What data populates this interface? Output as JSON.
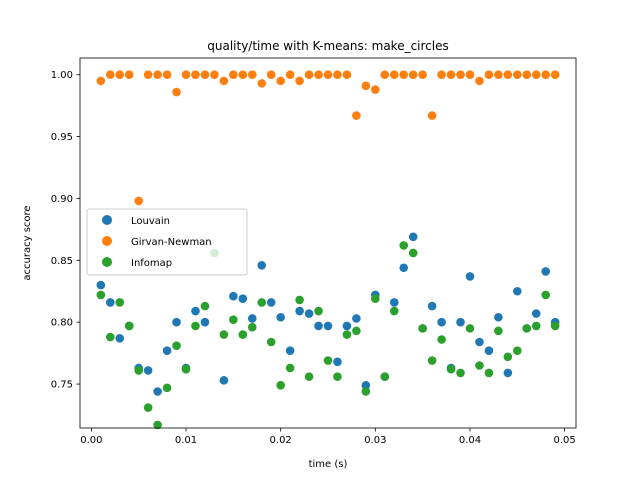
{
  "chart_data": {
    "type": "scatter",
    "title": "quality/time with K-means: make_circles",
    "xlabel": "time (s)",
    "ylabel": "accuracy score",
    "xlim": [
      -0.0012,
      0.0512
    ],
    "ylim": [
      0.7145,
      1.0135
    ],
    "xticks": [
      0.0,
      0.01,
      0.02,
      0.03,
      0.04,
      0.05
    ],
    "xtick_labels": [
      "0.00",
      "0.01",
      "0.02",
      "0.03",
      "0.04",
      "0.05"
    ],
    "yticks": [
      0.75,
      0.8,
      0.85,
      0.9,
      0.95,
      1.0
    ],
    "ytick_labels": [
      "0.75",
      "0.80",
      "0.85",
      "0.90",
      "0.95",
      "1.00"
    ],
    "grid": false,
    "legend_position": "center-left",
    "series": [
      {
        "name": "Louvain",
        "color": "#1f77b4",
        "points": [
          [
            0.001,
            0.83
          ],
          [
            0.002,
            0.816
          ],
          [
            0.003,
            0.787
          ],
          [
            0.004,
            0.797
          ],
          [
            0.005,
            0.763
          ],
          [
            0.006,
            0.761
          ],
          [
            0.007,
            0.744
          ],
          [
            0.008,
            0.777
          ],
          [
            0.009,
            0.8
          ],
          [
            0.01,
            0.763
          ],
          [
            0.011,
            0.809
          ],
          [
            0.012,
            0.8
          ],
          [
            0.013,
            0.856
          ],
          [
            0.014,
            0.753
          ],
          [
            0.015,
            0.821
          ],
          [
            0.016,
            0.819
          ],
          [
            0.017,
            0.803
          ],
          [
            0.018,
            0.846
          ],
          [
            0.019,
            0.816
          ],
          [
            0.02,
            0.804
          ],
          [
            0.021,
            0.777
          ],
          [
            0.022,
            0.809
          ],
          [
            0.023,
            0.807
          ],
          [
            0.024,
            0.797
          ],
          [
            0.025,
            0.797
          ],
          [
            0.026,
            0.768
          ],
          [
            0.027,
            0.797
          ],
          [
            0.028,
            0.803
          ],
          [
            0.029,
            0.749
          ],
          [
            0.03,
            0.822
          ],
          [
            0.031,
            0.756
          ],
          [
            0.032,
            0.816
          ],
          [
            0.033,
            0.844
          ],
          [
            0.034,
            0.869
          ],
          [
            0.035,
            0.795
          ],
          [
            0.036,
            0.813
          ],
          [
            0.037,
            0.8
          ],
          [
            0.038,
            0.763
          ],
          [
            0.039,
            0.8
          ],
          [
            0.04,
            0.837
          ],
          [
            0.041,
            0.784
          ],
          [
            0.042,
            0.777
          ],
          [
            0.043,
            0.804
          ],
          [
            0.044,
            0.759
          ],
          [
            0.045,
            0.825
          ],
          [
            0.046,
            0.795
          ],
          [
            0.047,
            0.807
          ],
          [
            0.048,
            0.841
          ],
          [
            0.049,
            0.8
          ]
        ]
      },
      {
        "name": "Girvan-Newman",
        "color": "#ff7f0e",
        "points": [
          [
            0.001,
            0.995
          ],
          [
            0.002,
            1.0
          ],
          [
            0.003,
            1.0
          ],
          [
            0.004,
            1.0
          ],
          [
            0.005,
            0.898
          ],
          [
            0.006,
            1.0
          ],
          [
            0.007,
            1.0
          ],
          [
            0.008,
            1.0
          ],
          [
            0.009,
            0.986
          ],
          [
            0.01,
            1.0
          ],
          [
            0.011,
            1.0
          ],
          [
            0.012,
            1.0
          ],
          [
            0.013,
            1.0
          ],
          [
            0.014,
            0.995
          ],
          [
            0.015,
            1.0
          ],
          [
            0.016,
            1.0
          ],
          [
            0.017,
            1.0
          ],
          [
            0.018,
            0.993
          ],
          [
            0.019,
            1.0
          ],
          [
            0.02,
            0.995
          ],
          [
            0.021,
            1.0
          ],
          [
            0.022,
            0.995
          ],
          [
            0.023,
            1.0
          ],
          [
            0.024,
            1.0
          ],
          [
            0.025,
            1.0
          ],
          [
            0.026,
            1.0
          ],
          [
            0.027,
            1.0
          ],
          [
            0.028,
            0.967
          ],
          [
            0.029,
            0.991
          ],
          [
            0.03,
            0.988
          ],
          [
            0.031,
            1.0
          ],
          [
            0.032,
            1.0
          ],
          [
            0.033,
            1.0
          ],
          [
            0.034,
            1.0
          ],
          [
            0.035,
            1.0
          ],
          [
            0.036,
            0.967
          ],
          [
            0.037,
            1.0
          ],
          [
            0.038,
            1.0
          ],
          [
            0.039,
            1.0
          ],
          [
            0.04,
            1.0
          ],
          [
            0.041,
            0.995
          ],
          [
            0.042,
            1.0
          ],
          [
            0.043,
            1.0
          ],
          [
            0.044,
            1.0
          ],
          [
            0.045,
            1.0
          ],
          [
            0.046,
            1.0
          ],
          [
            0.047,
            1.0
          ],
          [
            0.048,
            1.0
          ],
          [
            0.049,
            1.0
          ]
        ]
      },
      {
        "name": "Infomap",
        "color": "#2ca02c",
        "points": [
          [
            0.001,
            0.822
          ],
          [
            0.002,
            0.788
          ],
          [
            0.003,
            0.816
          ],
          [
            0.004,
            0.797
          ],
          [
            0.005,
            0.761
          ],
          [
            0.006,
            0.731
          ],
          [
            0.007,
            0.717
          ],
          [
            0.008,
            0.747
          ],
          [
            0.009,
            0.781
          ],
          [
            0.01,
            0.762
          ],
          [
            0.011,
            0.797
          ],
          [
            0.012,
            0.813
          ],
          [
            0.013,
            0.856
          ],
          [
            0.014,
            0.79
          ],
          [
            0.015,
            0.802
          ],
          [
            0.016,
            0.79
          ],
          [
            0.017,
            0.796
          ],
          [
            0.018,
            0.816
          ],
          [
            0.019,
            0.784
          ],
          [
            0.02,
            0.749
          ],
          [
            0.021,
            0.763
          ],
          [
            0.022,
            0.818
          ],
          [
            0.023,
            0.756
          ],
          [
            0.024,
            0.809
          ],
          [
            0.025,
            0.769
          ],
          [
            0.026,
            0.756
          ],
          [
            0.027,
            0.79
          ],
          [
            0.028,
            0.793
          ],
          [
            0.029,
            0.744
          ],
          [
            0.03,
            0.819
          ],
          [
            0.031,
            0.756
          ],
          [
            0.032,
            0.809
          ],
          [
            0.033,
            0.862
          ],
          [
            0.034,
            0.856
          ],
          [
            0.035,
            0.795
          ],
          [
            0.036,
            0.769
          ],
          [
            0.037,
            0.786
          ],
          [
            0.038,
            0.762
          ],
          [
            0.039,
            0.759
          ],
          [
            0.04,
            0.795
          ],
          [
            0.041,
            0.765
          ],
          [
            0.042,
            0.759
          ],
          [
            0.043,
            0.793
          ],
          [
            0.044,
            0.772
          ],
          [
            0.045,
            0.777
          ],
          [
            0.046,
            0.795
          ],
          [
            0.047,
            0.797
          ],
          [
            0.048,
            0.822
          ],
          [
            0.049,
            0.797
          ]
        ]
      }
    ]
  }
}
